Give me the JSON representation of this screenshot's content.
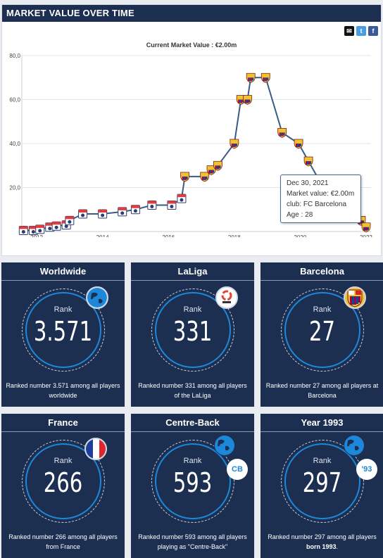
{
  "panel": {
    "title": "MARKET VALUE OVER TIME",
    "share": {
      "email_icon": "email-icon",
      "twitter_icon": "twitter-icon",
      "facebook_icon": "facebook-icon"
    },
    "current_value": "Current Market Value : €2.00m"
  },
  "chart_data": {
    "type": "line",
    "y_ticks": [
      "80,0",
      "60,0",
      "40,0",
      "20,0"
    ],
    "x_ticks": [
      "2012",
      "2014",
      "2016",
      "2018",
      "2020",
      "2022"
    ],
    "ylim": [
      0,
      80
    ],
    "xlim": [
      2011.55,
      2022.15
    ],
    "grid": true,
    "series": [
      {
        "color": "#3b5a85",
        "points": [
          {
            "x": 2011.6,
            "y": 0.5,
            "club": "Lyon"
          },
          {
            "x": 2011.9,
            "y": 0.5,
            "club": "Lyon"
          },
          {
            "x": 2012.1,
            "y": 1,
            "club": "Lyon"
          },
          {
            "x": 2012.4,
            "y": 2,
            "club": "Lyon"
          },
          {
            "x": 2012.6,
            "y": 2.5,
            "club": "Lyon"
          },
          {
            "x": 2012.9,
            "y": 3,
            "club": "Lyon"
          },
          {
            "x": 2013.0,
            "y": 5,
            "club": "Lyon"
          },
          {
            "x": 2013.4,
            "y": 8,
            "club": "Lyon"
          },
          {
            "x": 2014.0,
            "y": 8,
            "club": "Lyon"
          },
          {
            "x": 2014.6,
            "y": 9,
            "club": "Lyon"
          },
          {
            "x": 2015.0,
            "y": 10,
            "club": "Lyon"
          },
          {
            "x": 2015.5,
            "y": 12,
            "club": "Lyon"
          },
          {
            "x": 2016.1,
            "y": 12,
            "club": "Lyon"
          },
          {
            "x": 2016.4,
            "y": 15,
            "club": "Lyon"
          },
          {
            "x": 2016.5,
            "y": 25,
            "club": "Barcelona"
          },
          {
            "x": 2017.1,
            "y": 25,
            "club": "Barcelona"
          },
          {
            "x": 2017.3,
            "y": 28,
            "club": "Barcelona"
          },
          {
            "x": 2017.5,
            "y": 30,
            "club": "Barcelona"
          },
          {
            "x": 2018.0,
            "y": 40,
            "club": "Barcelona"
          },
          {
            "x": 2018.2,
            "y": 60,
            "club": "Barcelona"
          },
          {
            "x": 2018.4,
            "y": 60,
            "club": "Barcelona"
          },
          {
            "x": 2018.5,
            "y": 70,
            "club": "Barcelona"
          },
          {
            "x": 2018.95,
            "y": 70,
            "club": "Barcelona"
          },
          {
            "x": 2019.45,
            "y": 45,
            "club": "Barcelona"
          },
          {
            "x": 2019.95,
            "y": 40,
            "club": "Barcelona"
          },
          {
            "x": 2020.25,
            "y": 32,
            "club": "Barcelona"
          },
          {
            "x": 2020.7,
            "y": 20,
            "club": "Barcelona"
          },
          {
            "x": 2021.4,
            "y": 8,
            "club": "Barcelona"
          },
          {
            "x": 2021.85,
            "y": 5,
            "club": "Barcelona"
          },
          {
            "x": 2022.0,
            "y": 2,
            "club": "Barcelona"
          }
        ]
      }
    ]
  },
  "tooltip": {
    "date": "Dec 30, 2021",
    "value": "Market value: €2.00m",
    "club": "club: FC Barcelona",
    "age": "Age : 28"
  },
  "cards": [
    {
      "title": "Worldwide",
      "rank_label": "Rank",
      "rank": "3.571",
      "text": "Ranked number 3.571 among all players worldwide",
      "icon": "globe-icon"
    },
    {
      "title": "LaLiga",
      "rank_label": "Rank",
      "rank": "331",
      "text": "Ranked number 331 among all players of the LaLiga",
      "icon": "laliga-logo-icon"
    },
    {
      "title": "Barcelona",
      "rank_label": "Rank",
      "rank": "27",
      "text": "Ranked number 27 among all players at Barcelona",
      "icon": "barcelona-crest-icon"
    },
    {
      "title": "France",
      "rank_label": "Rank",
      "rank": "266",
      "text": "Ranked number 266 among all players from France",
      "icon": "france-flag-icon"
    },
    {
      "title": "Centre-Back",
      "rank_label": "Rank",
      "rank": "593",
      "text": "Ranked number 593 among all players playing as \"Centre-Back\"",
      "icon": "globe-icon",
      "tag": "CB"
    },
    {
      "title": "Year 1993",
      "rank_label": "Rank",
      "rank": "297",
      "text_prefix": "Ranked number 297 among all players ",
      "text_bold": "born 1993",
      "text_suffix": ".",
      "icon": "globe-icon",
      "tag": "'93"
    }
  ],
  "colors": {
    "navy": "#1d2f50",
    "accent_blue": "#1d88d9",
    "line": "#3b5a85",
    "lyon_marker": "#e03c3c",
    "barca_marker": "#a50044"
  }
}
